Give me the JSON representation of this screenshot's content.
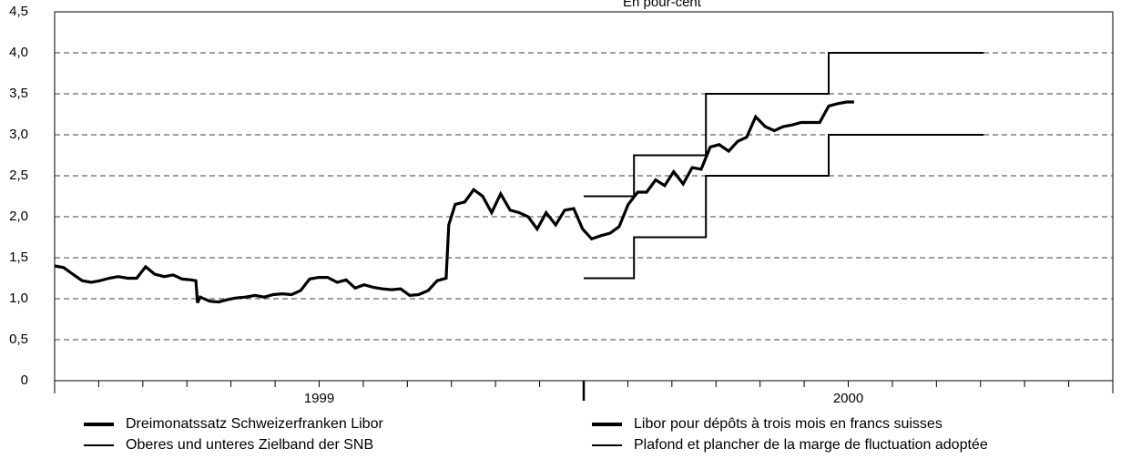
{
  "chart_data": {
    "type": "line",
    "title": "En pour-cent",
    "xlim": [
      1999,
      2001
    ],
    "xbounds": [
      1999,
      2000,
      2001
    ],
    "xminor": 12,
    "xticks": [
      {
        "value": 1999.5,
        "label": "1999"
      },
      {
        "value": 2000.5,
        "label": "2000"
      }
    ],
    "ylim": [
      0,
      4.5
    ],
    "yticks": [
      0,
      {
        "value": 0.5,
        "label": "0,5"
      },
      {
        "value": 1,
        "label": "1,0"
      },
      {
        "value": 1.5,
        "label": "1,5"
      },
      {
        "value": 2,
        "label": "2,0"
      },
      {
        "value": 2.5,
        "label": "2,5"
      },
      {
        "value": 3,
        "label": "3,0"
      },
      {
        "value": 3.5,
        "label": "3,5"
      },
      {
        "value": 4,
        "label": "4,0"
      },
      {
        "value": 4.5,
        "label": "4,5"
      }
    ],
    "grid": true,
    "series": [
      {
        "color": "#000000",
        "line_width": 3.2,
        "x": [
          1999.0,
          1999.017,
          1999.034,
          1999.052,
          1999.069,
          1999.086,
          1999.103,
          1999.12,
          1999.138,
          1999.155,
          1999.172,
          1999.189,
          1999.207,
          1999.224,
          1999.241,
          1999.258,
          1999.267,
          1999.27,
          1999.275,
          1999.293,
          1999.31,
          1999.327,
          1999.344,
          1999.361,
          1999.379,
          1999.396,
          1999.413,
          1999.43,
          1999.448,
          1999.465,
          1999.482,
          1999.499,
          1999.516,
          1999.534,
          1999.551,
          1999.568,
          1999.585,
          1999.602,
          1999.62,
          1999.637,
          1999.654,
          1999.671,
          1999.688,
          1999.706,
          1999.723,
          1999.74,
          1999.745,
          1999.757,
          1999.775,
          1999.792,
          1999.809,
          1999.826,
          1999.843,
          1999.861,
          1999.878,
          1999.895,
          1999.912,
          1999.929,
          1999.947,
          1999.964,
          1999.981,
          1999.998,
          2000.015,
          2000.033,
          2000.05,
          2000.067,
          2000.084,
          2000.102,
          2000.119,
          2000.136,
          2000.153,
          2000.17,
          2000.188,
          2000.205,
          2000.222,
          2000.239,
          2000.256,
          2000.274,
          2000.291,
          2000.308,
          2000.325,
          2000.343,
          2000.36,
          2000.377,
          2000.394,
          2000.411,
          2000.429,
          2000.446,
          2000.463,
          2000.48,
          2000.497,
          2000.511
        ],
        "values": [
          1.4,
          1.38,
          1.3,
          1.22,
          1.2,
          1.22,
          1.25,
          1.27,
          1.25,
          1.25,
          1.39,
          1.3,
          1.27,
          1.29,
          1.24,
          1.23,
          1.22,
          0.95,
          1.02,
          0.97,
          0.96,
          0.99,
          1.01,
          1.02,
          1.04,
          1.02,
          1.05,
          1.06,
          1.05,
          1.1,
          1.24,
          1.26,
          1.26,
          1.2,
          1.23,
          1.13,
          1.17,
          1.14,
          1.12,
          1.11,
          1.12,
          1.04,
          1.05,
          1.1,
          1.22,
          1.25,
          1.9,
          2.15,
          2.18,
          2.33,
          2.25,
          2.05,
          2.28,
          2.08,
          2.05,
          2.0,
          1.85,
          2.05,
          1.9,
          2.08,
          2.1,
          1.85,
          1.73,
          1.77,
          1.8,
          1.88,
          2.15,
          2.3,
          2.3,
          2.45,
          2.38,
          2.55,
          2.4,
          2.6,
          2.58,
          2.85,
          2.88,
          2.8,
          2.92,
          2.97,
          3.22,
          3.1,
          3.05,
          3.1,
          3.12,
          3.15,
          3.15,
          3.15,
          3.35,
          3.38,
          3.4,
          3.4
        ]
      },
      {
        "color": "#000000",
        "line_width": 2,
        "x": [
          2000.0,
          2000.095,
          2000.095,
          2000.231,
          2000.231,
          2000.463,
          2000.463,
          2000.756
        ],
        "values": [
          2.25,
          2.25,
          2.75,
          2.75,
          3.5,
          3.5,
          4.0,
          4.0
        ]
      },
      {
        "color": "#000000",
        "line_width": 2,
        "x": [
          2000.0,
          2000.095,
          2000.095,
          2000.231,
          2000.231,
          2000.463,
          2000.463,
          2000.756
        ],
        "values": [
          1.25,
          1.25,
          1.75,
          1.75,
          2.5,
          2.5,
          3.0,
          3.0
        ]
      }
    ],
    "legend": [
      {
        "label": "Dreimonatssatz Schweizerfranken Libor",
        "line_width": 4
      },
      {
        "label": "Oberes und unteres Zielband der SNB",
        "line_width": 2
      },
      {
        "label": "Libor pour dépôts à trois mois en francs suisses",
        "line_width": 4
      },
      {
        "label": "Plafond et plancher de la marge de fluctuation adoptée",
        "line_width": 2
      }
    ]
  }
}
